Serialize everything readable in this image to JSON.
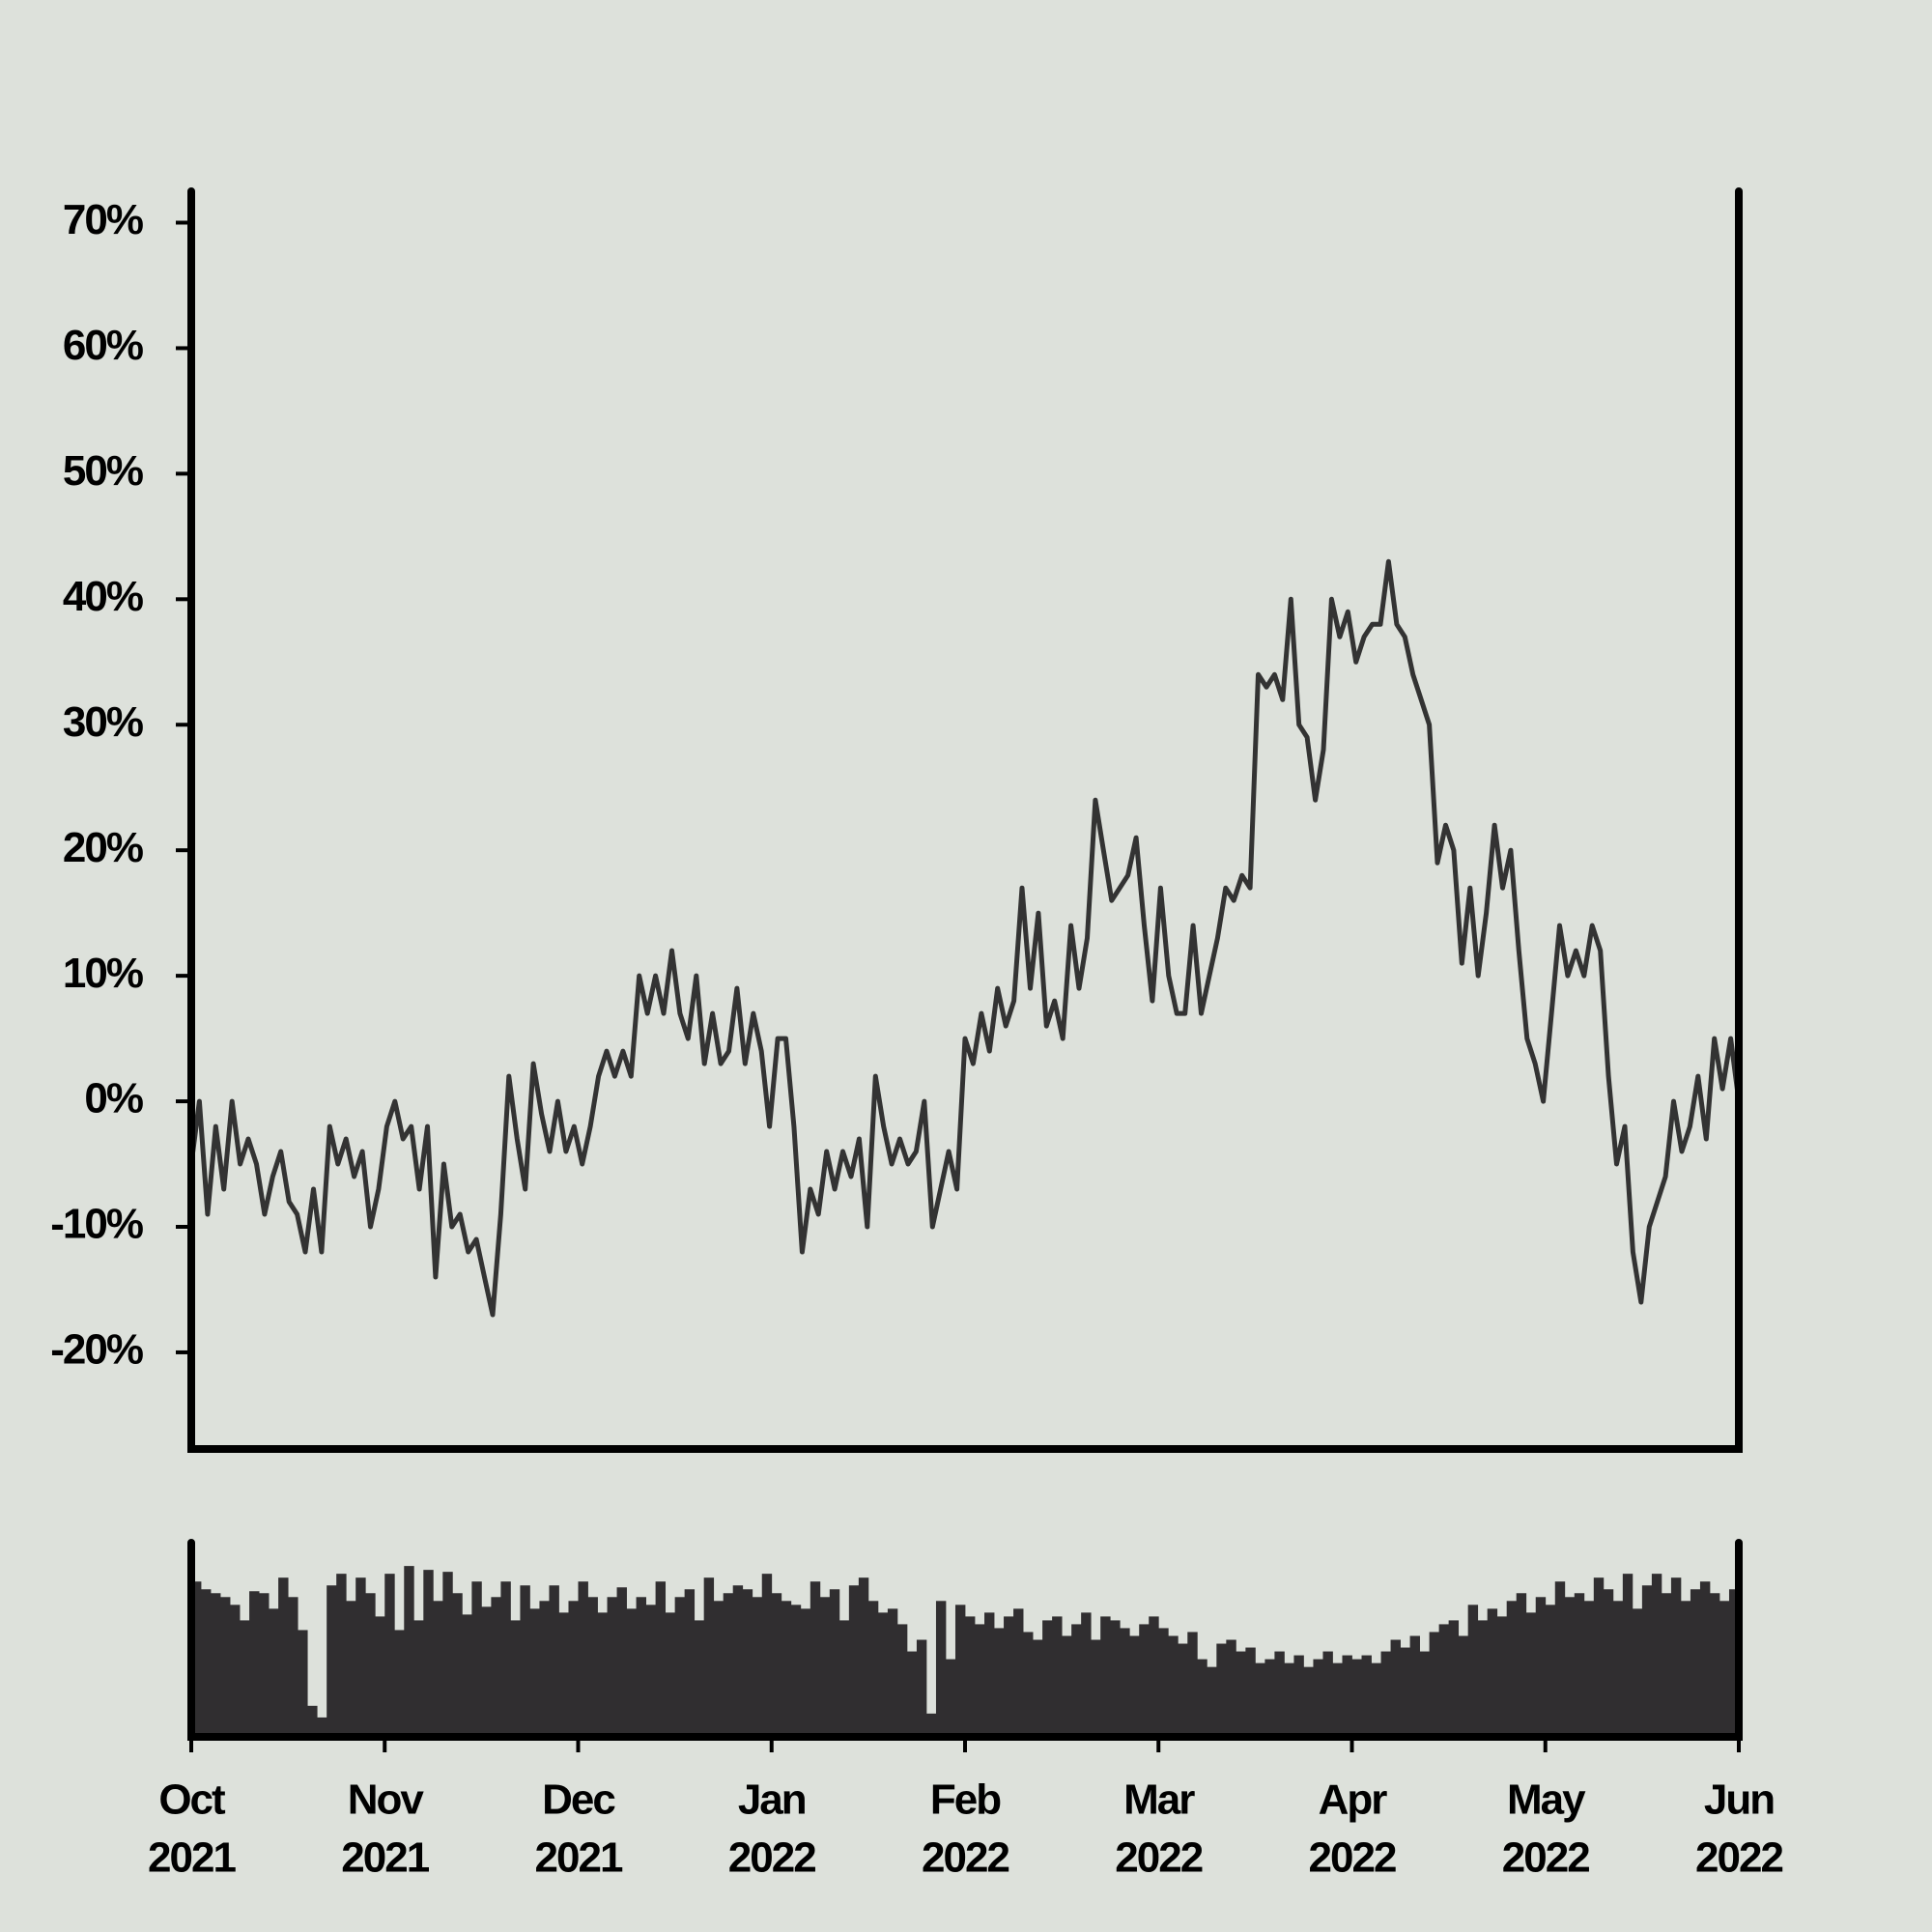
{
  "chart_data": [
    {
      "type": "line",
      "color": "#333333",
      "ylim": [
        -27.7,
        72.5
      ],
      "yticks": [
        {
          "value": -20,
          "label": "-20%"
        },
        {
          "value": -10,
          "label": "-10%"
        },
        {
          "value": 0,
          "label": "0%"
        },
        {
          "value": 10,
          "label": "10%"
        },
        {
          "value": 20,
          "label": "20%"
        },
        {
          "value": 30,
          "label": "30%"
        },
        {
          "value": 40,
          "label": "40%"
        },
        {
          "value": 50,
          "label": "50%"
        },
        {
          "value": 60,
          "label": "60%"
        },
        {
          "value": 70,
          "label": "70%"
        }
      ],
      "values": [
        -5,
        0,
        -9,
        -2,
        -7,
        0,
        -5,
        -3,
        -5,
        -9,
        -6,
        -4,
        -8,
        -9,
        -12,
        -7,
        -12,
        -2,
        -5,
        -3,
        -6,
        -4,
        -10,
        -7,
        -2,
        0,
        -3,
        -2,
        -7,
        -2,
        -14,
        -5,
        -10,
        -9,
        -12,
        -11,
        -14,
        -17,
        -9,
        2,
        -3,
        -7,
        3,
        -1,
        -4,
        0,
        -4,
        -2,
        -5,
        -2,
        2,
        4,
        2,
        4,
        2,
        10,
        7,
        10,
        7,
        12,
        7,
        5,
        10,
        3,
        7,
        3,
        4,
        9,
        3,
        7,
        4,
        -2,
        5,
        5,
        -2,
        -12,
        -7,
        -9,
        -4,
        -7,
        -4,
        -6,
        -3,
        -10,
        2,
        -2,
        -5,
        -3,
        -5,
        -4,
        0,
        -10,
        -7,
        -4,
        -7,
        5,
        3,
        7,
        4,
        9,
        6,
        8,
        17,
        9,
        15,
        6,
        8,
        5,
        14,
        9,
        13,
        24,
        20,
        16,
        17,
        18,
        21,
        14,
        8,
        17,
        10,
        7,
        7,
        14,
        7,
        10,
        13,
        17,
        16,
        18,
        17,
        34,
        33,
        34,
        32,
        40,
        30,
        29,
        24,
        28,
        40,
        37,
        39,
        35,
        37,
        38,
        38,
        43,
        38,
        37,
        34,
        32,
        30,
        19,
        22,
        20,
        11,
        17,
        10,
        15,
        22,
        17,
        20,
        12,
        5,
        3,
        0,
        7,
        14,
        10,
        12,
        10,
        14,
        12,
        2,
        -5,
        -2,
        -12,
        -16,
        -10,
        -8,
        -6,
        0,
        -4,
        -2,
        2,
        -3,
        5,
        1,
        5,
        0
      ]
    },
    {
      "type": "bar",
      "color": "#302e30",
      "ylim": [
        0,
        100
      ],
      "xlim": [
        0,
        8
      ],
      "xticks": [
        {
          "value": 0,
          "label": [
            "Oct",
            "2021"
          ]
        },
        {
          "value": 1,
          "label": [
            "Nov",
            "2021"
          ]
        },
        {
          "value": 2,
          "label": [
            "Dec",
            "2021"
          ]
        },
        {
          "value": 3,
          "label": [
            "Jan",
            "2022"
          ]
        },
        {
          "value": 4,
          "label": [
            "Feb",
            "2022"
          ]
        },
        {
          "value": 5,
          "label": [
            "Mar",
            "2022"
          ]
        },
        {
          "value": 6,
          "label": [
            "Apr",
            "2022"
          ]
        },
        {
          "value": 7,
          "label": [
            "May",
            "2022"
          ]
        },
        {
          "value": 8,
          "label": [
            "Jun",
            "2022"
          ]
        }
      ],
      "values": [
        80,
        76,
        74,
        72,
        68,
        60,
        75,
        74,
        66,
        82,
        72,
        55,
        16,
        10,
        78,
        84,
        70,
        82,
        74,
        62,
        84,
        55,
        88,
        60,
        86,
        70,
        85,
        74,
        63,
        80,
        67,
        72,
        80,
        60,
        78,
        66,
        70,
        78,
        64,
        70,
        80,
        72,
        64,
        72,
        77,
        66,
        72,
        68,
        80,
        64,
        72,
        76,
        60,
        82,
        70,
        74,
        78,
        76,
        72,
        84,
        74,
        70,
        68,
        66,
        80,
        72,
        76,
        60,
        78,
        82,
        70,
        64,
        66,
        58,
        44,
        50,
        12,
        70,
        40,
        68,
        62,
        58,
        64,
        56,
        62,
        66,
        54,
        50,
        60,
        62,
        52,
        58,
        64,
        50,
        62,
        60,
        56,
        52,
        58,
        62,
        56,
        52,
        48,
        54,
        40,
        36,
        48,
        50,
        44,
        46,
        38,
        40,
        44,
        38,
        42,
        36,
        40,
        44,
        38,
        42,
        40,
        42,
        38,
        44,
        50,
        46,
        52,
        44,
        54,
        58,
        60,
        52,
        68,
        60,
        66,
        62,
        70,
        74,
        64,
        72,
        68,
        80,
        72,
        74,
        70,
        82,
        76,
        70,
        84,
        66,
        78,
        84,
        74,
        82,
        70,
        76,
        80,
        74,
        70,
        76
      ]
    }
  ]
}
